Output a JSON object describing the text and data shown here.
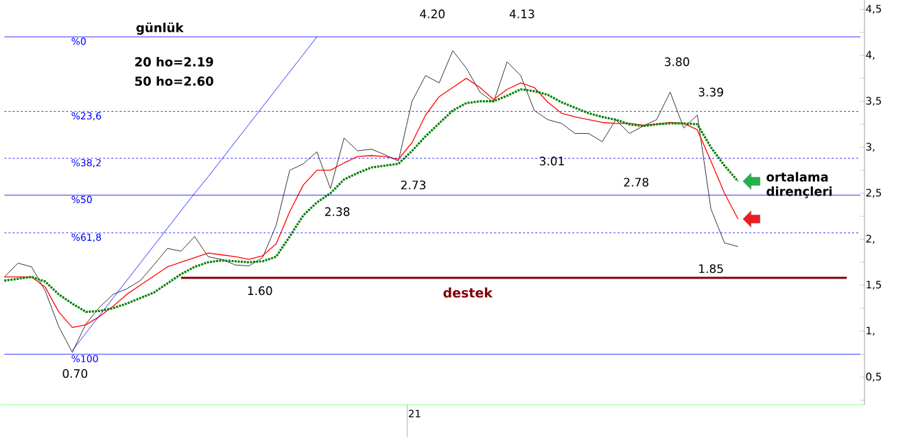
{
  "chart_data": {
    "type": "line",
    "title": "günlük",
    "annotations": [
      "20 ho=2.19",
      "50 ho=2.60",
      "ortalama dirençleri",
      "4.20",
      "4.13",
      "3.80",
      "3.39",
      "3.01",
      "2.78",
      "2.73",
      "2.38",
      "1.60",
      "1.85",
      "0.70",
      "destek",
      "21",
      "%0",
      "%23,6",
      "%38,2",
      "%50",
      "%61,8",
      "%100"
    ],
    "categories": [
      null,
      null,
      null,
      null,
      null,
      null,
      null,
      null,
      null,
      null,
      null,
      null,
      null,
      null,
      null,
      null,
      null,
      null,
      null,
      null,
      null,
      null,
      null,
      null,
      null,
      null,
      null,
      null,
      null,
      null,
      null,
      null,
      null,
      null,
      null,
      null,
      null,
      null,
      null,
      null,
      null,
      null,
      null,
      null,
      null,
      null,
      null,
      null,
      null,
      null,
      null,
      null,
      null,
      null,
      null,
      null,
      null,
      null,
      null,
      null,
      null,
      null,
      null,
      null
    ],
    "series": [
      {
        "color": "#000000",
        "values": [
          1.59,
          1.74,
          1.7,
          1.44,
          1.05,
          0.77,
          1.08,
          1.26,
          1.4,
          1.46,
          1.55,
          1.72,
          1.9,
          1.87,
          2.03,
          1.81,
          1.78,
          1.72,
          1.71,
          1.8,
          2.15,
          2.75,
          2.82,
          2.95,
          2.55,
          3.1,
          2.96,
          2.98,
          2.92,
          2.85,
          3.5,
          3.78,
          3.7,
          4.05,
          3.86,
          3.6,
          3.49,
          3.93,
          3.78,
          3.4,
          3.3,
          3.26,
          3.15,
          3.15,
          3.06,
          3.3,
          3.15,
          3.23,
          3.3,
          3.6,
          3.21,
          3.35,
          2.33,
          1.96,
          1.92,
          null,
          null,
          null,
          null,
          null,
          null,
          null,
          null,
          null
        ]
      },
      {
        "color": "#ff0000",
        "values": [
          1.59,
          1.59,
          1.59,
          1.48,
          1.21,
          1.04,
          1.07,
          1.16,
          1.27,
          1.4,
          1.5,
          1.6,
          1.7,
          1.75,
          1.8,
          1.85,
          1.83,
          1.81,
          1.78,
          1.82,
          1.95,
          2.3,
          2.59,
          2.75,
          2.75,
          2.83,
          2.9,
          2.91,
          2.9,
          2.87,
          3.05,
          3.35,
          3.55,
          3.65,
          3.75,
          3.65,
          3.52,
          3.63,
          3.7,
          3.65,
          3.49,
          3.37,
          3.33,
          3.3,
          3.27,
          3.26,
          3.26,
          3.24,
          3.25,
          3.27,
          3.26,
          3.19,
          2.85,
          2.5,
          2.22,
          null,
          null,
          null,
          null,
          null,
          null,
          null,
          null,
          null
        ]
      },
      {
        "color": "#008000",
        "line_style": "dotted",
        "values": [
          1.55,
          1.57,
          1.59,
          1.54,
          1.4,
          1.3,
          1.21,
          1.22,
          1.25,
          1.3,
          1.36,
          1.42,
          1.52,
          1.62,
          1.7,
          1.75,
          1.77,
          1.76,
          1.75,
          1.76,
          1.81,
          2.03,
          2.26,
          2.4,
          2.5,
          2.65,
          2.72,
          2.78,
          2.8,
          2.82,
          2.96,
          3.12,
          3.26,
          3.4,
          3.48,
          3.5,
          3.5,
          3.56,
          3.63,
          3.61,
          3.57,
          3.49,
          3.43,
          3.37,
          3.33,
          3.3,
          3.25,
          3.23,
          3.25,
          3.26,
          3.26,
          3.25,
          3.0,
          2.8,
          2.63,
          null,
          null,
          null,
          null,
          null,
          null,
          null,
          null,
          null
        ]
      },
      {
        "color": "#0000ff",
        "values": [
          null,
          null,
          null,
          null,
          null,
          0.79,
          0.98,
          1.17,
          1.36,
          1.55,
          1.74,
          1.93,
          2.12,
          2.31,
          2.5,
          2.68,
          2.87,
          3.06,
          3.25,
          3.44,
          3.63,
          3.82,
          4.01,
          4.2,
          null,
          null,
          null,
          null,
          null,
          null,
          null,
          null,
          null,
          null,
          null,
          null,
          null,
          null,
          null,
          null,
          null,
          null,
          null,
          null,
          null,
          null,
          null,
          null,
          null,
          null,
          null,
          null,
          null,
          null,
          null,
          null,
          null,
          null,
          null,
          null,
          null,
          null,
          null,
          null
        ]
      },
      {
        "color": "#800000",
        "values": [
          null,
          null,
          null,
          null,
          null,
          null,
          null,
          null,
          null,
          null,
          null,
          null,
          null,
          1.58,
          1.58,
          1.58,
          1.58,
          1.58,
          1.58,
          1.58,
          1.58,
          1.58,
          1.58,
          1.58,
          1.58,
          1.58,
          1.58,
          1.58,
          1.58,
          1.58,
          1.58,
          1.58,
          1.58,
          1.58,
          1.58,
          1.58,
          1.58,
          1.58,
          1.58,
          1.58,
          1.58,
          1.58,
          1.58,
          1.58,
          1.58,
          1.58,
          1.58,
          1.58,
          1.58,
          1.58,
          1.58,
          1.58,
          1.58,
          1.58,
          1.58,
          1.58,
          1.58,
          1.58,
          1.58,
          1.58,
          1.58,
          1.58,
          1.58,
          null
        ]
      }
    ],
    "ref_lines": [
      {
        "axis": "y",
        "value": 4.2,
        "color": "#0000ff",
        "line_style": "solid"
      },
      {
        "axis": "y",
        "value": 3.39,
        "color": "#0000ff",
        "line_style": "dashed"
      },
      {
        "axis": "y",
        "value": 2.88,
        "color": "#0000ff",
        "line_style": "dashed"
      },
      {
        "axis": "y",
        "value": 2.48,
        "color": "#0000ff",
        "line_style": "solid"
      },
      {
        "axis": "y",
        "value": 2.07,
        "color": "#0000ff",
        "line_style": "dashed"
      },
      {
        "axis": "y",
        "value": 0.75,
        "color": "#0000ff",
        "line_style": "solid"
      }
    ],
    "ylim": [
      0.2,
      4.6
    ],
    "yticks": [
      {
        "value": 0.25,
        "label": null
      },
      {
        "value": 0.5,
        "label": "0,5"
      },
      {
        "value": 0.75,
        "label": null
      },
      {
        "value": 1,
        "label": "1,"
      },
      {
        "value": 1.25,
        "label": null
      },
      {
        "value": 1.5,
        "label": "1,5"
      },
      {
        "value": 1.75,
        "label": null
      },
      {
        "value": 2,
        "label": "2,"
      },
      {
        "value": 2.25,
        "label": null
      },
      {
        "value": 2.5,
        "label": "2,5"
      },
      {
        "value": 2.75,
        "label": null
      },
      {
        "value": 3,
        "label": "3,"
      },
      {
        "value": 3.25,
        "label": null
      },
      {
        "value": 3.5,
        "label": "3,5"
      },
      {
        "value": 3.75,
        "label": null
      },
      {
        "value": 4,
        "label": "4,"
      },
      {
        "value": 4.25,
        "label": null
      },
      {
        "value": 4.5,
        "label": "4,5"
      }
    ],
    "tick_labels": "y",
    "marker": "none",
    "line_style": "solid"
  }
}
